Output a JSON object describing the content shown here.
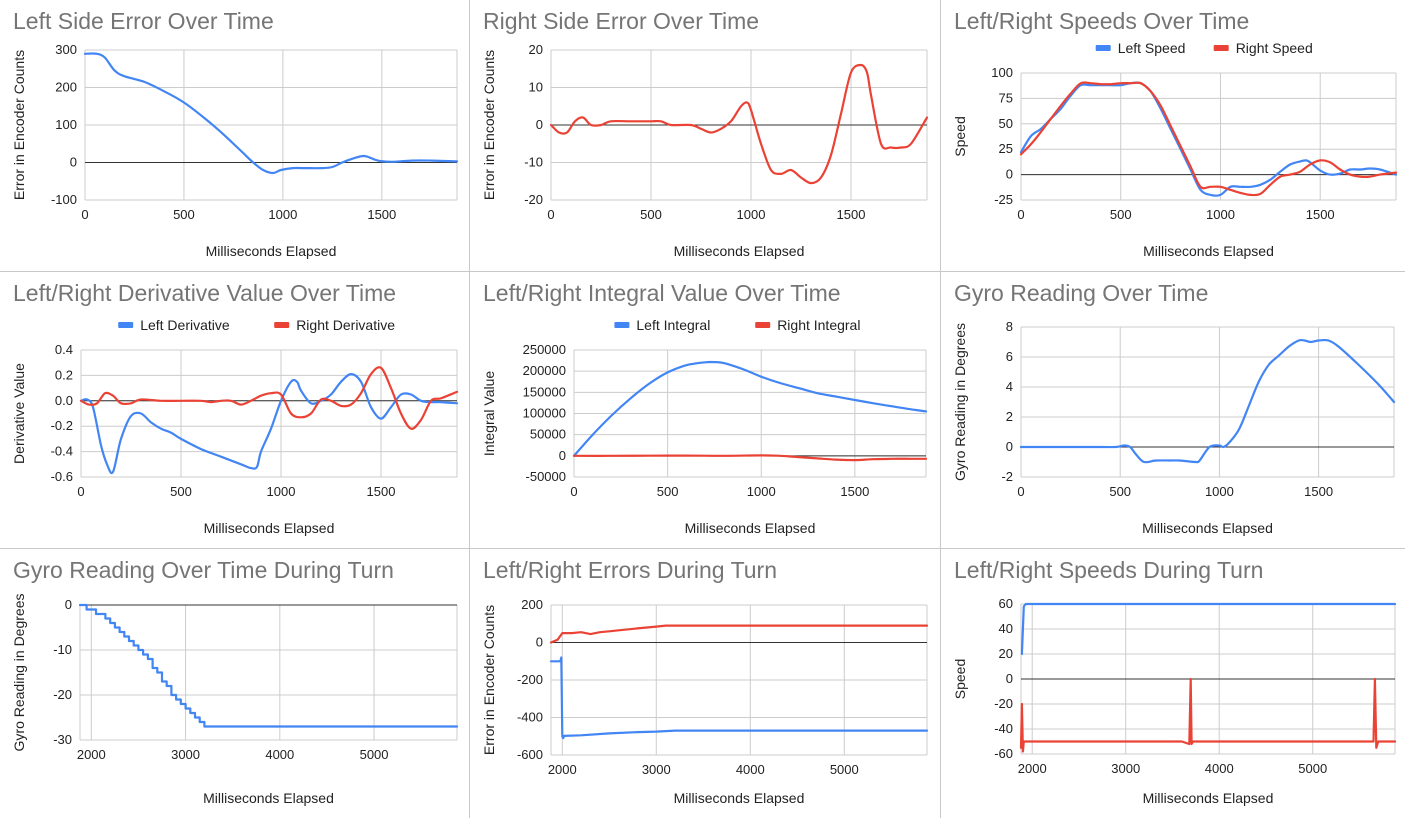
{
  "chart_data": [
    {
      "id": "left-error",
      "type": "line",
      "title": "Left Side Error Over Time",
      "xlabel": "Milliseconds Elapsed",
      "ylabel": "Error in Encoder Counts",
      "xlim": [
        0,
        1880
      ],
      "ylim": [
        -100,
        300
      ],
      "xticks": [
        0,
        500,
        1000,
        1500
      ],
      "yticks": [
        -100,
        0,
        100,
        200,
        300
      ],
      "grid": true,
      "legend": "none",
      "series": [
        {
          "color": "#4285f4",
          "x": [
            0,
            60,
            100,
            150,
            200,
            300,
            400,
            500,
            600,
            700,
            800,
            850,
            900,
            950,
            990,
            1050,
            1100,
            1200,
            1250,
            1300,
            1350,
            1400,
            1430,
            1480,
            1550,
            1650,
            1750,
            1880
          ],
          "y": [
            290,
            290,
            280,
            245,
            230,
            215,
            190,
            160,
            120,
            75,
            25,
            0,
            -20,
            -28,
            -20,
            -15,
            -15,
            -15,
            -12,
            0,
            10,
            17,
            15,
            5,
            2,
            5,
            5,
            3
          ]
        }
      ]
    },
    {
      "id": "right-error",
      "type": "line",
      "title": "Right Side Error Over Time",
      "xlabel": "Milliseconds Elapsed",
      "ylabel": "Error in Encoder Counts",
      "xlim": [
        0,
        1880
      ],
      "ylim": [
        -20,
        20
      ],
      "xticks": [
        0,
        500,
        1000,
        1500
      ],
      "yticks": [
        -20,
        -10,
        0,
        10,
        20
      ],
      "grid": true,
      "legend": "none",
      "series": [
        {
          "color": "#ea4335",
          "x": [
            0,
            40,
            80,
            120,
            160,
            200,
            250,
            300,
            400,
            500,
            550,
            600,
            700,
            750,
            800,
            850,
            900,
            950,
            980,
            1000,
            1050,
            1100,
            1150,
            1200,
            1250,
            1300,
            1350,
            1400,
            1450,
            1500,
            1550,
            1580,
            1600,
            1650,
            1700,
            1750,
            1800,
            1880
          ],
          "y": [
            0,
            -2,
            -2,
            1,
            2,
            0,
            0,
            1,
            1,
            1,
            1,
            0,
            0,
            -1,
            -2,
            -1,
            1,
            5,
            6,
            4,
            -5,
            -12,
            -13,
            -12,
            -14,
            -15.5,
            -14,
            -8,
            3,
            14,
            16,
            14,
            8,
            -5,
            -6,
            -6,
            -5,
            2
          ]
        }
      ]
    },
    {
      "id": "speeds",
      "type": "line",
      "title": "Left/Right Speeds Over Time",
      "xlabel": "Milliseconds Elapsed",
      "ylabel": "Speed",
      "xlim": [
        0,
        1880
      ],
      "ylim": [
        -25,
        100
      ],
      "xticks": [
        0,
        500,
        1000,
        1500
      ],
      "yticks": [
        -25,
        0,
        25,
        50,
        75,
        100
      ],
      "grid": true,
      "legend": "top",
      "series": [
        {
          "name": "Left Speed",
          "color": "#4285f4",
          "x": [
            0,
            50,
            100,
            150,
            200,
            250,
            300,
            350,
            400,
            450,
            500,
            550,
            600,
            650,
            700,
            750,
            800,
            850,
            900,
            950,
            1000,
            1050,
            1100,
            1150,
            1200,
            1250,
            1300,
            1350,
            1400,
            1430,
            1450,
            1500,
            1550,
            1600,
            1650,
            1700,
            1750,
            1800,
            1880
          ],
          "y": [
            22,
            38,
            45,
            55,
            65,
            78,
            88,
            88,
            88,
            88,
            88,
            90,
            90,
            82,
            65,
            45,
            25,
            5,
            -15,
            -20,
            -20,
            -12,
            -12,
            -12,
            -10,
            -5,
            3,
            10,
            13,
            14,
            12,
            4,
            0,
            1,
            5,
            5,
            6,
            5,
            0
          ]
        },
        {
          "name": "Right Speed",
          "color": "#ea4335",
          "x": [
            0,
            50,
            100,
            150,
            200,
            250,
            300,
            350,
            400,
            450,
            500,
            550,
            600,
            650,
            700,
            750,
            800,
            850,
            900,
            950,
            1000,
            1050,
            1100,
            1150,
            1200,
            1250,
            1300,
            1350,
            1400,
            1450,
            1500,
            1550,
            1600,
            1650,
            1700,
            1750,
            1800,
            1880
          ],
          "y": [
            20,
            30,
            42,
            55,
            68,
            80,
            90,
            90,
            89,
            89,
            90,
            90,
            90,
            82,
            68,
            48,
            28,
            8,
            -12,
            -12,
            -12,
            -15,
            -18,
            -20,
            -19,
            -10,
            -2,
            0,
            3,
            10,
            14,
            12,
            5,
            0,
            -2,
            -2,
            0,
            2
          ]
        }
      ]
    },
    {
      "id": "derivative",
      "type": "line",
      "title": "Left/Right Derivative Value Over Time",
      "xlabel": "Milliseconds Elapsed",
      "ylabel": "Derivative Value",
      "xlim": [
        0,
        1880
      ],
      "ylim": [
        -0.6,
        0.4
      ],
      "xticks": [
        0,
        500,
        1000,
        1500
      ],
      "yticks": [
        -0.6,
        -0.4,
        -0.2,
        0.0,
        0.2,
        0.4
      ],
      "ytick_labels": [
        "-0.6",
        "-0.4",
        "-0.2",
        "0.0",
        "0.2",
        "0.4"
      ],
      "grid": true,
      "legend": "top",
      "series": [
        {
          "name": "Left Derivative",
          "color": "#4285f4",
          "x": [
            0,
            30,
            60,
            100,
            130,
            160,
            200,
            250,
            300,
            350,
            400,
            450,
            500,
            600,
            700,
            800,
            850,
            880,
            900,
            950,
            1000,
            1050,
            1080,
            1100,
            1150,
            1200,
            1250,
            1300,
            1350,
            1400,
            1450,
            1500,
            1550,
            1600,
            1650,
            1700,
            1750,
            1800,
            1880
          ],
          "y": [
            0,
            0.01,
            -0.05,
            -0.35,
            -0.5,
            -0.56,
            -0.3,
            -0.12,
            -0.1,
            -0.17,
            -0.22,
            -0.25,
            -0.3,
            -0.38,
            -0.44,
            -0.5,
            -0.53,
            -0.52,
            -0.4,
            -0.22,
            0,
            0.15,
            0.15,
            0.08,
            -0.02,
            0,
            0.05,
            0.15,
            0.21,
            0.15,
            -0.05,
            -0.14,
            -0.05,
            0.05,
            0.05,
            0,
            -0.01,
            -0.01,
            -0.02
          ]
        },
        {
          "name": "Right Derivative",
          "color": "#ea4335",
          "x": [
            0,
            40,
            80,
            120,
            160,
            200,
            250,
            300,
            400,
            500,
            600,
            650,
            700,
            750,
            800,
            850,
            900,
            950,
            1000,
            1050,
            1100,
            1150,
            1200,
            1250,
            1300,
            1350,
            1400,
            1450,
            1500,
            1550,
            1600,
            1650,
            1700,
            1750,
            1800,
            1880
          ],
          "y": [
            0,
            -0.03,
            -0.02,
            0.06,
            0.04,
            -0.02,
            -0.02,
            0.01,
            0,
            0,
            0,
            -0.01,
            0,
            0,
            -0.03,
            0,
            0.04,
            0.06,
            0.05,
            -0.1,
            -0.13,
            -0.1,
            0.01,
            0,
            -0.04,
            -0.03,
            0.06,
            0.21,
            0.26,
            0.1,
            -0.1,
            -0.22,
            -0.15,
            0,
            0.02,
            0.07
          ]
        }
      ]
    },
    {
      "id": "integral",
      "type": "line",
      "title": "Left/Right Integral Value Over Time",
      "xlabel": "Milliseconds Elapsed",
      "ylabel": "Integral Value",
      "xlim": [
        0,
        1880
      ],
      "ylim": [
        -50000,
        250000
      ],
      "xticks": [
        0,
        500,
        1000,
        1500
      ],
      "yticks": [
        -50000,
        0,
        50000,
        100000,
        150000,
        200000,
        250000
      ],
      "grid": true,
      "legend": "top",
      "series": [
        {
          "name": "Left Integral",
          "color": "#4285f4",
          "x": [
            0,
            100,
            200,
            300,
            400,
            500,
            600,
            700,
            750,
            800,
            900,
            1000,
            1100,
            1200,
            1300,
            1400,
            1500,
            1600,
            1700,
            1800,
            1880
          ],
          "y": [
            0,
            50000,
            95000,
            135000,
            170000,
            197000,
            214000,
            221000,
            221500,
            219000,
            205000,
            187000,
            172000,
            160000,
            148000,
            140000,
            132000,
            124000,
            117000,
            110000,
            105000
          ]
        },
        {
          "name": "Right Integral",
          "color": "#ea4335",
          "x": [
            0,
            200,
            400,
            600,
            800,
            1000,
            1100,
            1200,
            1300,
            1400,
            1500,
            1600,
            1700,
            1800,
            1880
          ],
          "y": [
            0,
            0,
            300,
            500,
            0,
            1000,
            0,
            -3000,
            -6000,
            -9000,
            -10000,
            -8000,
            -7000,
            -7000,
            -7000
          ]
        }
      ]
    },
    {
      "id": "gyro",
      "type": "line",
      "title": "Gyro Reading Over Time",
      "xlabel": "Milliseconds Elapsed",
      "ylabel": "Gyro Reading in Degrees",
      "xlim": [
        0,
        1880
      ],
      "ylim": [
        -2,
        8
      ],
      "xticks": [
        0,
        500,
        1000,
        1500
      ],
      "yticks": [
        -2,
        0,
        2,
        4,
        6,
        8
      ],
      "grid": true,
      "legend": "none",
      "series": [
        {
          "color": "#4285f4",
          "x": [
            0,
            200,
            400,
            480,
            520,
            550,
            580,
            620,
            680,
            750,
            800,
            880,
            900,
            950,
            1000,
            1020,
            1050,
            1100,
            1150,
            1200,
            1250,
            1300,
            1350,
            1400,
            1430,
            1460,
            1500,
            1550,
            1600,
            1700,
            1800,
            1880
          ],
          "y": [
            0,
            0,
            0,
            0,
            0.1,
            0,
            -0.5,
            -1,
            -0.9,
            -0.9,
            -0.9,
            -1,
            -0.9,
            0,
            0.1,
            0,
            0.3,
            1.2,
            2.8,
            4.4,
            5.5,
            6.1,
            6.7,
            7.1,
            7.1,
            7.0,
            7.1,
            7.1,
            6.7,
            5.5,
            4.2,
            3.0
          ]
        }
      ]
    },
    {
      "id": "gyro-turn",
      "type": "line",
      "title": "Gyro Reading Over Time During Turn",
      "xlabel": "Milliseconds Elapsed",
      "ylabel": "Gyro Reading in Degrees",
      "xlim": [
        1880,
        5880
      ],
      "ylim": [
        -30,
        0
      ],
      "xticks": [
        2000,
        3000,
        4000,
        5000
      ],
      "yticks": [
        -30,
        -20,
        -10,
        0
      ],
      "grid": true,
      "legend": "none",
      "series": [
        {
          "color": "#4285f4",
          "step": true,
          "x": [
            1880,
            1950,
            2000,
            2050,
            2100,
            2150,
            2200,
            2250,
            2300,
            2350,
            2400,
            2450,
            2500,
            2550,
            2600,
            2650,
            2700,
            2750,
            2800,
            2850,
            2900,
            2950,
            3000,
            3050,
            3100,
            3150,
            3200,
            5880
          ],
          "y": [
            0,
            -1,
            -1,
            -2,
            -2,
            -3,
            -4,
            -5,
            -6,
            -7,
            -8,
            -9,
            -10,
            -11,
            -12,
            -14,
            -15,
            -17,
            -18,
            -20,
            -21,
            -22,
            -23,
            -24,
            -25,
            -26,
            -27,
            -27
          ]
        }
      ]
    },
    {
      "id": "errors-turn",
      "type": "line",
      "title": "Left/Right Errors During Turn",
      "xlabel": "Milliseconds Elapsed",
      "ylabel": "Error in Encoder Counts",
      "xlim": [
        1880,
        5880
      ],
      "ylim": [
        -600,
        200
      ],
      "xticks": [
        2000,
        3000,
        4000,
        5000
      ],
      "yticks": [
        -600,
        -400,
        -200,
        0,
        200
      ],
      "grid": true,
      "legend": "none",
      "series": [
        {
          "color": "#4285f4",
          "x": [
            1880,
            1980,
            1990,
            2000,
            2010,
            2020,
            2200,
            2500,
            2800,
            3000,
            3200,
            3500,
            4000,
            4500,
            5000,
            5880
          ],
          "y": [
            -100,
            -100,
            -80,
            -500,
            -510,
            -498,
            -495,
            -485,
            -478,
            -475,
            -470,
            -470,
            -470,
            -470,
            -470,
            -470
          ]
        },
        {
          "color": "#ea4335",
          "x": [
            1880,
            1950,
            2000,
            2100,
            2200,
            2300,
            2400,
            2500,
            2600,
            2800,
            3000,
            3100,
            3500,
            4000,
            5000,
            5880
          ],
          "y": [
            0,
            15,
            50,
            50,
            55,
            45,
            55,
            60,
            65,
            75,
            85,
            90,
            90,
            90,
            90,
            90
          ]
        }
      ]
    },
    {
      "id": "speeds-turn",
      "type": "line",
      "title": "Left/Right Speeds During Turn",
      "xlabel": "Milliseconds Elapsed",
      "ylabel": "Speed",
      "xlim": [
        1880,
        5880
      ],
      "ylim": [
        -60,
        60
      ],
      "xticks": [
        2000,
        3000,
        4000,
        5000
      ],
      "yticks": [
        -60,
        -40,
        -20,
        0,
        20,
        40,
        60
      ],
      "grid": true,
      "legend": "none",
      "series": [
        {
          "color": "#4285f4",
          "x": [
            1890,
            1910,
            1930,
            5880
          ],
          "y": [
            20,
            58,
            60,
            60
          ]
        },
        {
          "color": "#ea4335",
          "x": [
            1880,
            1890,
            1900,
            1910,
            1930,
            3600,
            3680,
            3695,
            3705,
            3720,
            5600,
            5650,
            5665,
            5680,
            5700,
            5880
          ],
          "y": [
            -55,
            -20,
            -58,
            -50,
            -50,
            -50,
            -52,
            0,
            -52,
            -50,
            -50,
            -50,
            0,
            -55,
            -50,
            -50
          ]
        }
      ]
    }
  ]
}
